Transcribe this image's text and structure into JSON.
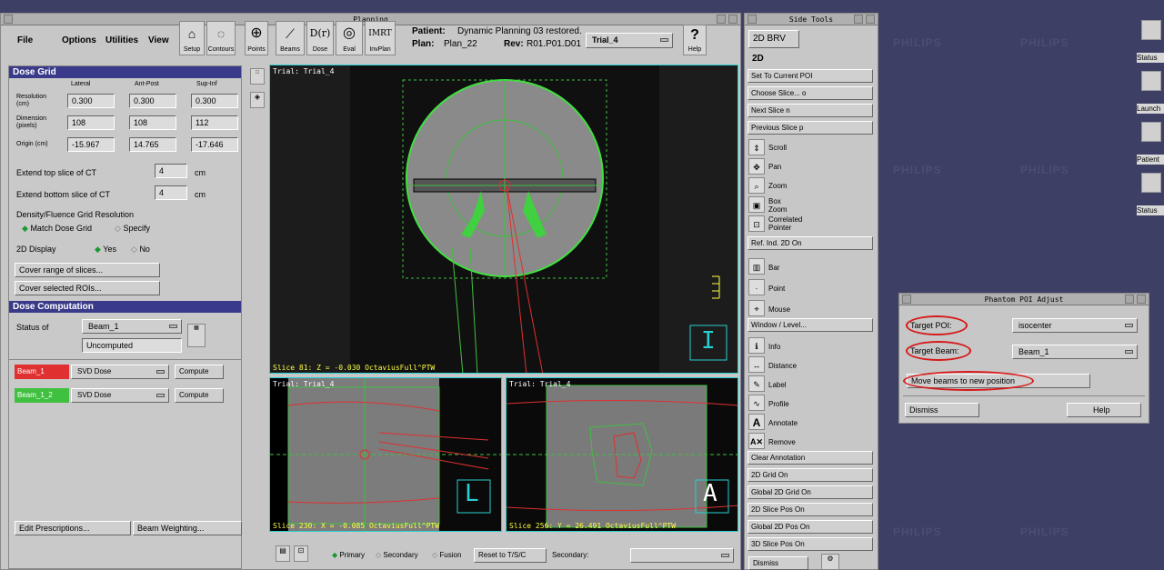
{
  "planning": {
    "title": "Planning",
    "menu": [
      "File",
      "Options",
      "Utilities",
      "View"
    ],
    "toolbar": [
      "Setup",
      "Contours",
      "Points",
      "Beams",
      "Dose",
      "Eval",
      "InvPlan"
    ],
    "help": "Help",
    "patient_label": "Patient:",
    "patient_value": "Dynamic Planning 03 restored.",
    "plan_label": "Plan:",
    "plan_value": "Plan_22",
    "rev_label": "Rev:",
    "rev_value": "R01.P01.D01",
    "trial_select": "Trial_4"
  },
  "dose_grid": {
    "header": "Dose Grid",
    "cols": [
      "Lateral",
      "Ant-Post",
      "Sup-Inf"
    ],
    "rows": [
      {
        "label": "Resolution (cm)",
        "values": [
          "0.300",
          "0.300",
          "0.300"
        ]
      },
      {
        "label": "Dimension (pixels)",
        "values": [
          "108",
          "108",
          "112"
        ]
      },
      {
        "label": "Origin (cm)",
        "values": [
          "-15.967",
          "14.765",
          "-17.646"
        ]
      }
    ],
    "extend_top": "Extend top slice of CT",
    "extend_top_val": "4",
    "extend_bottom": "Extend bottom slice of CT",
    "extend_bottom_val": "4",
    "unit": "cm",
    "density_label": "Density/Fluence Grid Resolution",
    "match_label": "Match Dose Grid",
    "specify_label": "Specify",
    "display2d": "2D Display",
    "yes": "Yes",
    "no": "No",
    "cover_slices": "Cover range of slices...",
    "cover_rois": "Cover selected ROIs..."
  },
  "dose_comp": {
    "header": "Dose Computation",
    "status_label": "Status of",
    "status_select": "Beam_1",
    "status_value": "Uncomputed",
    "beams": [
      {
        "name": "Beam_1",
        "method": "SVD Dose",
        "btn": "Compute",
        "color": "#e03030"
      },
      {
        "name": "Beam_1_2",
        "method": "SVD Dose",
        "btn": "Compute",
        "color": "#40c040"
      }
    ],
    "edit_rx": "Edit Prescriptions...",
    "beam_weight": "Beam Weighting..."
  },
  "views": {
    "main_title": "Trial: Trial_4",
    "main_slice": "Slice 81: Z = -0.030 OctaviusFull^PTW",
    "main_orient": "I",
    "sag_title": "Trial: Trial_4",
    "sag_slice": "Slice 230: X = -0.085 OctaviusFull^PTW",
    "sag_orient": "L",
    "cor_title": "Trial: Trial_4",
    "cor_slice": "Slice 256: Y = 26.491 OctaviusFull^PTW",
    "cor_orient": "A"
  },
  "bottom_bar": {
    "primary": "Primary",
    "secondary": "Secondary",
    "fusion": "Fusion",
    "reset": "Reset to T/S/C",
    "secondary_label": "Secondary:"
  },
  "side_tools": {
    "title": "Side Tools",
    "top_btn": "2D  BRV",
    "section": "2D",
    "btns1": [
      "Set To Current POI",
      "Choose Slice...   o",
      "Next Slice        n",
      "Previous Slice    p"
    ],
    "tools1": [
      "Scroll",
      "Pan",
      "Zoom",
      "Box Zoom",
      "Correlated Pointer"
    ],
    "ref": "Ref. Ind. 2D On",
    "tools2": [
      "Bar",
      "Point",
      "Mouse"
    ],
    "window": "Window / Level...",
    "tools3": [
      "Info",
      "Distance",
      "Label",
      "Profile",
      "Annotate",
      "Remove"
    ],
    "btns2": [
      "Clear Annotation",
      "2D Grid On",
      "Global 2D Grid On",
      "2D Slice Pos On",
      "Global 2D Pos On",
      "3D Slice Pos On"
    ],
    "dismiss": "Dismiss"
  },
  "phantom": {
    "title": "Phantom POI Adjust",
    "target_poi": "Target POI:",
    "poi_value": "isocenter",
    "target_beam": "Target Beam:",
    "beam_value": "Beam_1",
    "move": "Move beams to new position",
    "dismiss": "Dismiss",
    "help": "Help"
  },
  "desktop": {
    "icons": [
      "Status",
      "Launch",
      "Patient",
      "Status"
    ],
    "watermark": "PHILIPS"
  }
}
